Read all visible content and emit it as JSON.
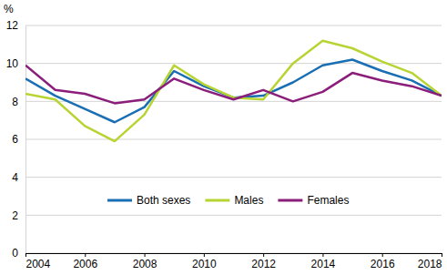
{
  "chart_data": {
    "type": "line",
    "ylabel": "%",
    "x": [
      2004,
      2005,
      2006,
      2007,
      2008,
      2009,
      2010,
      2011,
      2012,
      2013,
      2014,
      2015,
      2016,
      2017,
      2018
    ],
    "series": [
      {
        "name": "Both sexes",
        "color": "#1a6fb4",
        "values": [
          9.2,
          8.3,
          7.6,
          6.9,
          7.7,
          9.6,
          8.8,
          8.2,
          8.3,
          9.0,
          9.9,
          10.2,
          9.6,
          9.1,
          8.3
        ]
      },
      {
        "name": "Males",
        "color": "#b7d433",
        "values": [
          8.4,
          8.1,
          6.7,
          5.9,
          7.3,
          9.9,
          8.9,
          8.2,
          8.1,
          10.0,
          11.2,
          10.8,
          10.1,
          9.5,
          8.3
        ]
      },
      {
        "name": "Females",
        "color": "#8b1d7b",
        "values": [
          9.9,
          8.6,
          8.4,
          7.9,
          8.1,
          9.2,
          8.6,
          8.1,
          8.6,
          8.0,
          8.5,
          9.5,
          9.1,
          8.8,
          8.3
        ]
      }
    ],
    "xlim": [
      2004,
      2018
    ],
    "xticks": [
      2004,
      2006,
      2008,
      2010,
      2012,
      2014,
      2016,
      2018
    ],
    "ylim": [
      0,
      12
    ],
    "yticks": [
      0,
      2,
      4,
      6,
      8,
      10,
      12
    ],
    "grid": true,
    "legend": "bottom"
  }
}
